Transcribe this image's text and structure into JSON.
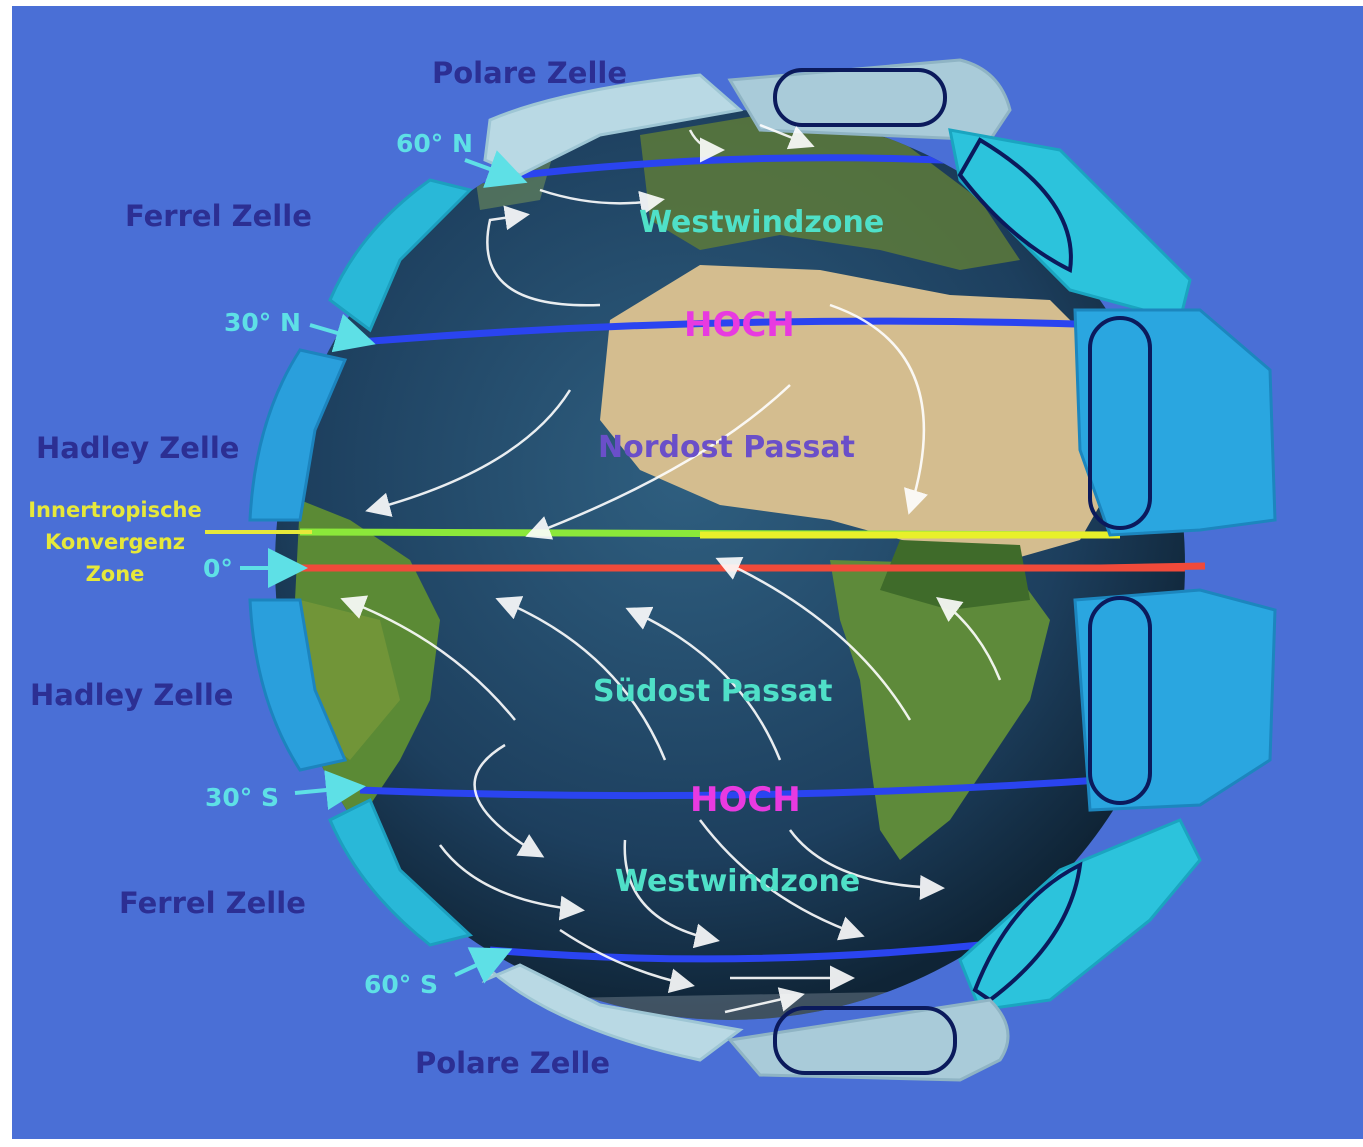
{
  "labels": {
    "polar_top": "Polare Zelle",
    "polar_bottom": "Polare Zelle",
    "ferrel_north": "Ferrel Zelle",
    "ferrel_south": "Ferrel Zelle",
    "hadley_north": "Hadley Zelle",
    "hadley_south": "Hadley Zelle",
    "lat_60n": "60° N",
    "lat_30n": "30° N",
    "lat_0": "0°",
    "lat_30s": "30° S",
    "lat_60s": "60° S",
    "itcz_line1": "Innertropische",
    "itcz_line2": "Konvergenz",
    "itcz_line3": "Zone",
    "westwind_north": "Westwindzone",
    "westwind_south": "Westwindzone",
    "hoch_north": "HOCH",
    "hoch_south": "HOCH",
    "nordost_passat": "Nordost Passat",
    "suedost_passat": "Südost Passat"
  },
  "colors": {
    "background": "#4a6fd6",
    "globe_ocean": "#1f4466",
    "land": "#c8b48a",
    "cell_light": "#b9d9e4",
    "cell_cyan": "#29b8d8",
    "cell_blue": "#2a9fdc",
    "lat_line": "#2540e8",
    "equator_line": "#f04a3a",
    "itcz_line": "#e8f02a",
    "cell_label": "#2c2f93",
    "lat_label": "#5ee0e6",
    "hoch": "#e83ae0"
  }
}
